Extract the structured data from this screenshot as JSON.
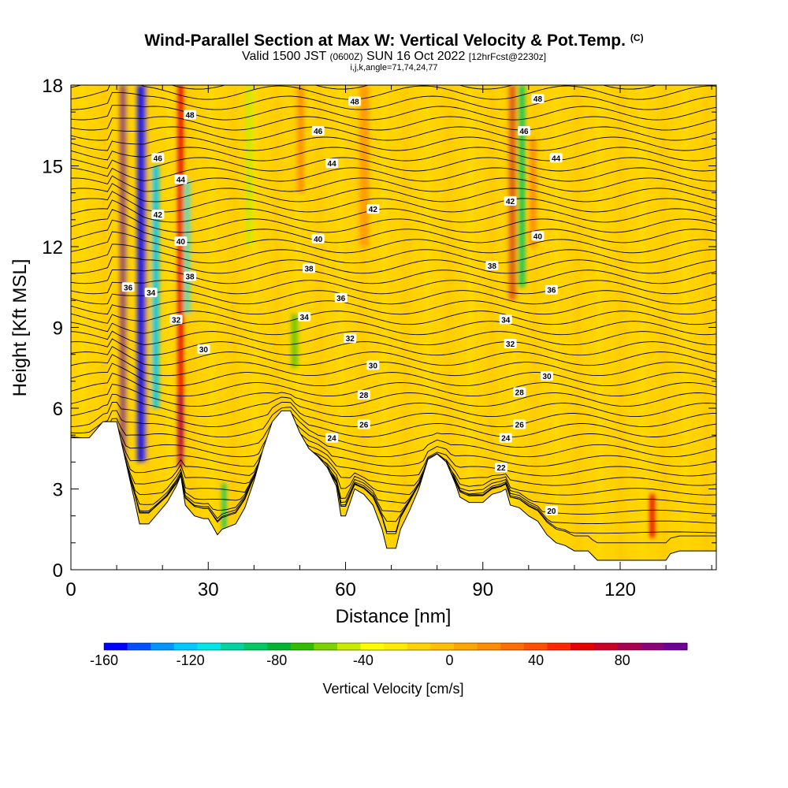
{
  "header": {
    "title": "Wind-Parallel Section at Max W: Vertical Velocity & Pot.Temp.",
    "copyright": "(C)",
    "subtitle_main": "Valid 1500 JST",
    "subtitle_utc": "(0600Z)",
    "subtitle_date": "SUN 16 Oct 2022",
    "subtitle_fcst": "[12hrFcst@2230z]",
    "indices": "i,j,k,angle=71,74,24,77"
  },
  "chart_data": {
    "type": "heatmap",
    "xlabel": "Distance [nm]",
    "ylabel": "Height [Kft MSL]",
    "xlim": [
      0,
      141
    ],
    "ylim": [
      0,
      18
    ],
    "x_ticks": [
      0,
      30,
      60,
      90,
      120
    ],
    "y_ticks": [
      0,
      3,
      6,
      9,
      12,
      15,
      18
    ],
    "colorbar": {
      "label": "Vertical Velocity [cm/s]",
      "range": [
        -160,
        110
      ],
      "ticks": [
        -160,
        -120,
        -80,
        -40,
        0,
        40,
        80
      ],
      "colors": [
        "#0000ff",
        "#0050ff",
        "#0096ff",
        "#00c8ff",
        "#00e6e6",
        "#00d2a0",
        "#00c864",
        "#00b432",
        "#32be00",
        "#7dd200",
        "#c8eb00",
        "#ffff00",
        "#ffeb00",
        "#ffd200",
        "#ffbe00",
        "#ffa500",
        "#ff8c00",
        "#ff6e00",
        "#ff5000",
        "#ff2800",
        "#e60000",
        "#c80028",
        "#aa0050",
        "#8c0078",
        "#6e0096"
      ]
    },
    "terrain_kft": [
      [
        0,
        4.9
      ],
      [
        4,
        4.9
      ],
      [
        7,
        5.5
      ],
      [
        10,
        5.5
      ],
      [
        12,
        4
      ],
      [
        14,
        2.5
      ],
      [
        15,
        1.7
      ],
      [
        17,
        1.7
      ],
      [
        19,
        2.1
      ],
      [
        21,
        2.5
      ],
      [
        23,
        3.1
      ],
      [
        24,
        3.5
      ],
      [
        25,
        2.4
      ],
      [
        27,
        2
      ],
      [
        29,
        1.9
      ],
      [
        30,
        1.9
      ],
      [
        31,
        1.6
      ],
      [
        32,
        1.3
      ],
      [
        33,
        1.5
      ],
      [
        36,
        1.7
      ],
      [
        38,
        2.3
      ],
      [
        40,
        3.3
      ],
      [
        42,
        4.5
      ],
      [
        44,
        5.5
      ],
      [
        46,
        5.9
      ],
      [
        48,
        5.9
      ],
      [
        50,
        5.1
      ],
      [
        52,
        4.5
      ],
      [
        54,
        4.2
      ],
      [
        56,
        3.8
      ],
      [
        58,
        3.1
      ],
      [
        59,
        2
      ],
      [
        60,
        2
      ],
      [
        62,
        3
      ],
      [
        64,
        2.8
      ],
      [
        66,
        2.4
      ],
      [
        68,
        1.5
      ],
      [
        69,
        0.8
      ],
      [
        71,
        0.8
      ],
      [
        72,
        1.5
      ],
      [
        74,
        2.2
      ],
      [
        76,
        3
      ],
      [
        78,
        4.1
      ],
      [
        80,
        4.3
      ],
      [
        82,
        4
      ],
      [
        84,
        3.2
      ],
      [
        85,
        2.7
      ],
      [
        86,
        2.6
      ],
      [
        87,
        2.5
      ],
      [
        88,
        2.5
      ],
      [
        90,
        2.5
      ],
      [
        92,
        2.8
      ],
      [
        94,
        2.9
      ],
      [
        95,
        3
      ],
      [
        96,
        2.4
      ],
      [
        98,
        2.3
      ],
      [
        100,
        2
      ],
      [
        102,
        1.8
      ],
      [
        104,
        1.3
      ],
      [
        106,
        1
      ],
      [
        108,
        0.9
      ],
      [
        110,
        0.7
      ],
      [
        113,
        0.7
      ],
      [
        115,
        0.35
      ],
      [
        120,
        0.35
      ],
      [
        130,
        0.35
      ],
      [
        131,
        0.6
      ],
      [
        133,
        0.7
      ],
      [
        141,
        0.7
      ]
    ],
    "theta_labels": [
      {
        "x": 62,
        "y": 17.4,
        "v": "48"
      },
      {
        "x": 102,
        "y": 17.5,
        "v": "48"
      },
      {
        "x": 26,
        "y": 16.9,
        "v": "48"
      },
      {
        "x": 54,
        "y": 16.3,
        "v": "46"
      },
      {
        "x": 19,
        "y": 15.3,
        "v": "46"
      },
      {
        "x": 99,
        "y": 16.3,
        "v": "46"
      },
      {
        "x": 57,
        "y": 15.1,
        "v": "44"
      },
      {
        "x": 106,
        "y": 15.3,
        "v": "44"
      },
      {
        "x": 24,
        "y": 14.5,
        "v": "44"
      },
      {
        "x": 66,
        "y": 13.4,
        "v": "42"
      },
      {
        "x": 96,
        "y": 13.7,
        "v": "42"
      },
      {
        "x": 19,
        "y": 13.2,
        "v": "42"
      },
      {
        "x": 54,
        "y": 12.3,
        "v": "40"
      },
      {
        "x": 102,
        "y": 12.4,
        "v": "40"
      },
      {
        "x": 24,
        "y": 12.2,
        "v": "40"
      },
      {
        "x": 52,
        "y": 11.2,
        "v": "38"
      },
      {
        "x": 92,
        "y": 11.3,
        "v": "38"
      },
      {
        "x": 26,
        "y": 10.9,
        "v": "38"
      },
      {
        "x": 12.5,
        "y": 10.5,
        "v": "36"
      },
      {
        "x": 59,
        "y": 10.1,
        "v": "36"
      },
      {
        "x": 105,
        "y": 10.4,
        "v": "36"
      },
      {
        "x": 17.5,
        "y": 10.3,
        "v": "34"
      },
      {
        "x": 51,
        "y": 9.4,
        "v": "34"
      },
      {
        "x": 95,
        "y": 9.3,
        "v": "34"
      },
      {
        "x": 23,
        "y": 9.3,
        "v": "32"
      },
      {
        "x": 61,
        "y": 8.6,
        "v": "32"
      },
      {
        "x": 96,
        "y": 8.4,
        "v": "32"
      },
      {
        "x": 29,
        "y": 8.2,
        "v": "30"
      },
      {
        "x": 66,
        "y": 7.6,
        "v": "30"
      },
      {
        "x": 104,
        "y": 7.2,
        "v": "30"
      },
      {
        "x": 64,
        "y": 6.5,
        "v": "28"
      },
      {
        "x": 98,
        "y": 6.6,
        "v": "28"
      },
      {
        "x": 64,
        "y": 5.4,
        "v": "26"
      },
      {
        "x": 98,
        "y": 5.4,
        "v": "26"
      },
      {
        "x": 57,
        "y": 4.9,
        "v": "24"
      },
      {
        "x": 95,
        "y": 4.9,
        "v": "24"
      },
      {
        "x": 94,
        "y": 3.8,
        "v": "22"
      },
      {
        "x": 105,
        "y": 2.2,
        "v": "20"
      }
    ],
    "w_features": [
      {
        "x": 11.5,
        "ytop": 18,
        "ybot": 3.6,
        "w": 110,
        "width": 1.4
      },
      {
        "x": 15.5,
        "ytop": 18,
        "ybot": 4.0,
        "w": -160,
        "width": 2.0
      },
      {
        "x": 18.5,
        "ytop": 15,
        "ybot": 6,
        "w": -120,
        "width": 1.6
      },
      {
        "x": 24,
        "ytop": 18,
        "ybot": 4.5,
        "w": 60,
        "width": 1.3
      },
      {
        "x": 25.5,
        "ytop": 14.5,
        "ybot": 9.5,
        "w": -110,
        "width": 1.3
      },
      {
        "x": 24,
        "ytop": 6.5,
        "ybot": 3.8,
        "w": 80,
        "width": 1.2
      },
      {
        "x": 33.5,
        "ytop": 3.2,
        "ybot": 1.5,
        "w": -90,
        "width": 1.0
      },
      {
        "x": 39,
        "ytop": 18,
        "ybot": 12,
        "w": -50,
        "width": 1.5
      },
      {
        "x": 49,
        "ytop": 9.5,
        "ybot": 7.5,
        "w": -70,
        "width": 1.4
      },
      {
        "x": 50,
        "ytop": 18,
        "ybot": 14,
        "w": 30,
        "width": 1.5
      },
      {
        "x": 64,
        "ytop": 18,
        "ybot": 12,
        "w": 20,
        "width": 2.0
      },
      {
        "x": 96.5,
        "ytop": 18,
        "ybot": 10,
        "w": 70,
        "width": 1.4
      },
      {
        "x": 98.5,
        "ytop": 18,
        "ybot": 10.5,
        "w": -90,
        "width": 1.4
      },
      {
        "x": 101,
        "ytop": 16,
        "ybot": 12,
        "w": 30,
        "width": 1.3
      },
      {
        "x": 127,
        "ytop": 2.8,
        "ybot": 1.2,
        "w": 60,
        "width": 1.2
      }
    ]
  }
}
